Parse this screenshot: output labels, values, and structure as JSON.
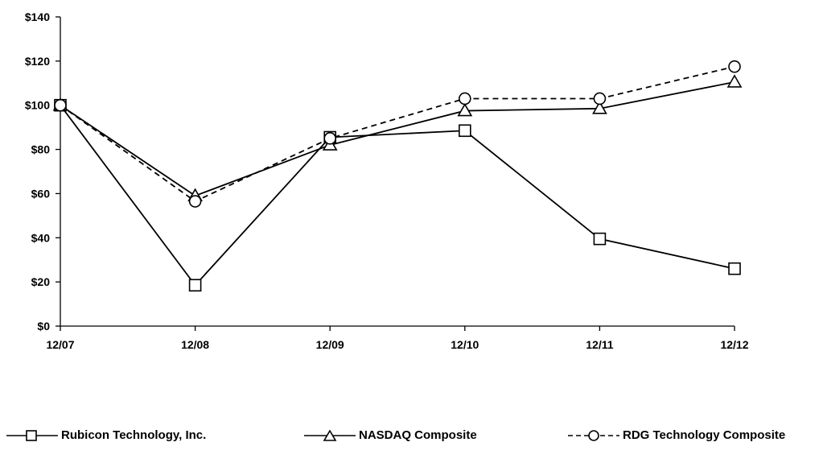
{
  "chart_data": {
    "type": "line",
    "categories": [
      "12/07",
      "12/08",
      "12/09",
      "12/10",
      "12/11",
      "12/12"
    ],
    "yticks": [
      "$0",
      "$20",
      "$40",
      "$60",
      "$80",
      "$100",
      "$120",
      "$140"
    ],
    "ylim": [
      0,
      140
    ],
    "series": [
      {
        "name": "Rubicon Technology, Inc.",
        "values": [
          100,
          18.5,
          85.5,
          88.5,
          39.5,
          26
        ],
        "marker": "square",
        "dash": "solid",
        "color": "#000000"
      },
      {
        "name": "NASDAQ Composite",
        "values": [
          100,
          59,
          82,
          97.5,
          98.5,
          110.5
        ],
        "marker": "triangle",
        "dash": "solid",
        "color": "#000000"
      },
      {
        "name": "RDG Technology Composite",
        "values": [
          100,
          56.5,
          85,
          103,
          103,
          117.5
        ],
        "marker": "circle",
        "dash": "dashed",
        "color": "#000000"
      }
    ],
    "grid": false,
    "legend_position": "bottom"
  }
}
